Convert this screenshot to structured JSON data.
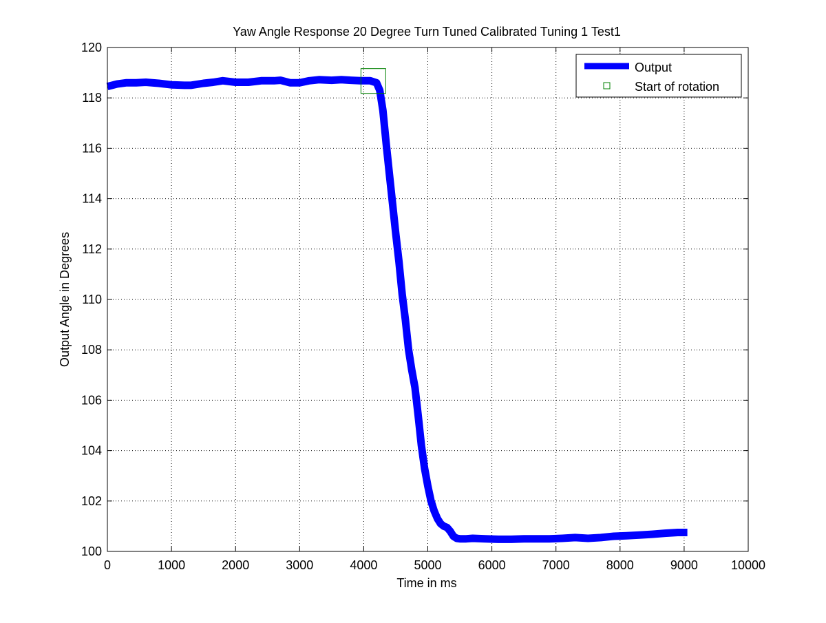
{
  "chart_data": {
    "type": "line",
    "title": "Yaw Angle Response 20 Degree Turn Tuned Calibrated Tuning 1 Test1",
    "xlabel": "Time in ms",
    "ylabel": "Output Angle in Degrees",
    "xlim": [
      0,
      10000
    ],
    "ylim": [
      100,
      120
    ],
    "xticks": [
      "0",
      "1000",
      "2000",
      "3000",
      "4000",
      "5000",
      "6000",
      "7000",
      "8000",
      "9000",
      "10000"
    ],
    "yticks": [
      "100",
      "102",
      "104",
      "106",
      "108",
      "110",
      "112",
      "114",
      "116",
      "118",
      "120"
    ],
    "grid": true,
    "legend_position": "top-right",
    "series": [
      {
        "name": "Output",
        "color": "#0000ff",
        "style": "thick-line",
        "x": [
          0,
          150,
          300,
          450,
          600,
          800,
          1000,
          1200,
          1300,
          1500,
          1650,
          1800,
          2000,
          2200,
          2400,
          2600,
          2700,
          2850,
          3000,
          3150,
          3300,
          3500,
          3650,
          3800,
          3950,
          4100,
          4200,
          4250,
          4300,
          4350,
          4400,
          4450,
          4500,
          4550,
          4600,
          4650,
          4700,
          4750,
          4800,
          4850,
          4900,
          4950,
          5000,
          5050,
          5100,
          5150,
          5200,
          5250,
          5300,
          5350,
          5400,
          5450,
          5500,
          5600,
          5700,
          5900,
          6100,
          6300,
          6500,
          6700,
          6900,
          7100,
          7300,
          7500,
          7700,
          7900,
          8100,
          8300,
          8500,
          8700,
          8900,
          9050
        ],
        "y": [
          118.45,
          118.55,
          118.6,
          118.6,
          118.62,
          118.58,
          118.52,
          118.5,
          118.5,
          118.58,
          118.62,
          118.68,
          118.62,
          118.62,
          118.68,
          118.68,
          118.7,
          118.6,
          118.6,
          118.68,
          118.72,
          118.7,
          118.72,
          118.7,
          118.68,
          118.68,
          118.6,
          118.3,
          117.5,
          116.2,
          115.0,
          113.8,
          112.6,
          111.5,
          110.2,
          109.2,
          108.0,
          107.2,
          106.5,
          105.4,
          104.2,
          103.3,
          102.6,
          102.0,
          101.6,
          101.3,
          101.1,
          101.0,
          100.95,
          100.8,
          100.6,
          100.52,
          100.5,
          100.5,
          100.52,
          100.5,
          100.48,
          100.48,
          100.5,
          100.5,
          100.5,
          100.52,
          100.55,
          100.52,
          100.55,
          100.6,
          100.62,
          100.65,
          100.68,
          100.72,
          100.75,
          100.75
        ]
      },
      {
        "name": "Start of rotation",
        "color": "#008000",
        "style": "square-marker",
        "x": [
          4150
        ],
        "y": [
          118.67
        ]
      }
    ]
  }
}
